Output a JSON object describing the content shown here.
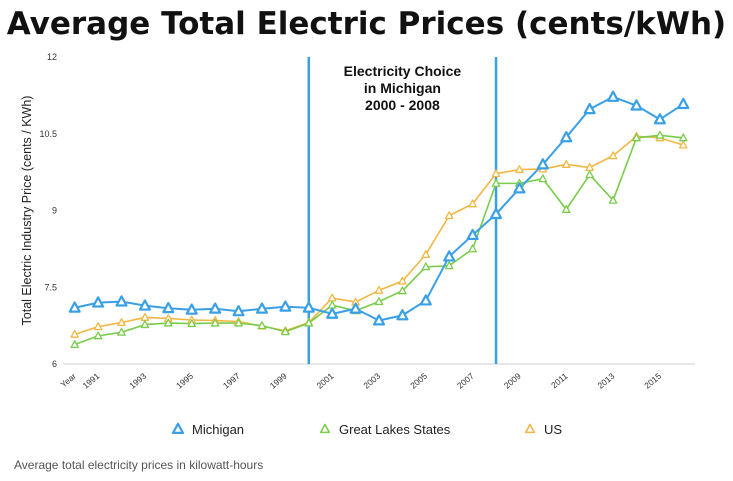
{
  "title": "Average Total Electric Prices (cents/kWh)",
  "caption": "Average total electricity prices in kilowatt-hours",
  "annotation": {
    "lines": [
      "Electricity Choice",
      "in Michigan",
      "2000 - 2008"
    ],
    "start_year": 2000,
    "end_year": 2008
  },
  "colors": {
    "Michigan": "#3aa0e6",
    "Great Lakes States": "#78cc4a",
    "US": "#f2b742",
    "annotation_line": "#3aa0e6"
  },
  "chart_data": {
    "type": "line",
    "title": "Average Total Electric Prices (cents/kWh)",
    "ylabel": "Total Electric Industry Price (cents / KWh)",
    "xlabel": "",
    "ylim": [
      6,
      12
    ],
    "yticks": [
      6,
      7.5,
      9,
      10.5,
      12
    ],
    "ytick_labels": [
      "6",
      "7.5",
      "9",
      "10.5",
      "12"
    ],
    "xticks": [
      "Year",
      "1991",
      "1993",
      "1995",
      "1997",
      "1999",
      "2001",
      "2003",
      "2005",
      "2007",
      "2009",
      "2011",
      "2013",
      "2015"
    ],
    "x": [
      1990,
      1991,
      1992,
      1993,
      1994,
      1995,
      1996,
      1997,
      1998,
      1999,
      2000,
      2001,
      2002,
      2003,
      2004,
      2005,
      2006,
      2007,
      2008,
      2009,
      2010,
      2011,
      2012,
      2013,
      2014,
      2015,
      2016
    ],
    "grid": false,
    "legend_position": "bottom",
    "series": [
      {
        "name": "Michigan",
        "marker": "triangle",
        "values": [
          7.1,
          7.2,
          7.22,
          7.14,
          7.09,
          7.06,
          7.08,
          7.03,
          7.08,
          7.12,
          7.1,
          6.98,
          7.08,
          6.85,
          6.95,
          7.24,
          8.1,
          8.52,
          8.93,
          9.43,
          9.9,
          10.43,
          10.98,
          11.22,
          11.05,
          10.78,
          11.08
        ]
      },
      {
        "name": "Great Lakes States",
        "marker": "triangle",
        "values": [
          6.38,
          6.55,
          6.62,
          6.77,
          6.8,
          6.79,
          6.8,
          6.8,
          6.75,
          6.63,
          6.8,
          7.15,
          7.04,
          7.22,
          7.43,
          7.9,
          7.92,
          8.25,
          9.53,
          9.53,
          9.62,
          9.02,
          9.7,
          9.2,
          10.42,
          10.47,
          10.42
        ]
      },
      {
        "name": "US",
        "marker": "triangle",
        "values": [
          6.58,
          6.73,
          6.81,
          6.91,
          6.89,
          6.86,
          6.85,
          6.83,
          6.74,
          6.65,
          6.81,
          7.29,
          7.21,
          7.44,
          7.62,
          8.14,
          8.9,
          9.13,
          9.72,
          9.8,
          9.81,
          9.9,
          9.84,
          10.07,
          10.45,
          10.42,
          10.28
        ]
      }
    ]
  }
}
